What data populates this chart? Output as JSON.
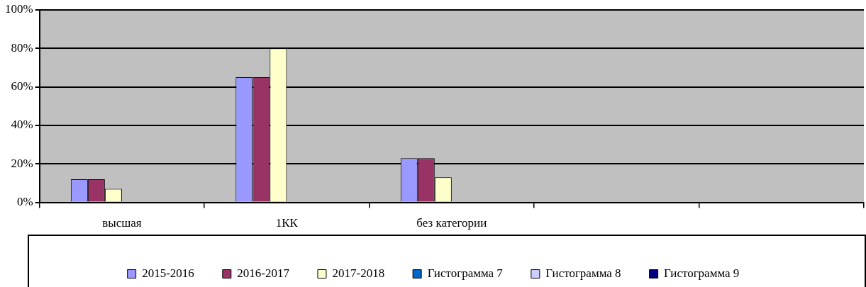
{
  "chart_data": {
    "type": "bar",
    "categories": [
      "высшая",
      "1КК",
      "без категории",
      null,
      null
    ],
    "series": [
      {
        "name": "2015-2016",
        "color": "#9999ff",
        "values": [
          12,
          65,
          23,
          null,
          null
        ]
      },
      {
        "name": "2016-2017",
        "color": "#993366",
        "values": [
          12,
          65,
          23,
          null,
          null
        ]
      },
      {
        "name": "2017-2018",
        "color": "#ffffcc",
        "values": [
          7,
          80,
          13,
          null,
          null
        ]
      },
      {
        "name": "Гистограмма 7",
        "color": "#0066cc",
        "values": [
          null,
          null,
          null,
          null,
          null
        ]
      },
      {
        "name": "Гистограмма 8",
        "color": "#ccccff",
        "values": [
          null,
          null,
          null,
          null,
          null
        ]
      },
      {
        "name": "Гистограмма 9",
        "color": "#000080",
        "values": [
          null,
          null,
          null,
          null,
          null
        ]
      }
    ],
    "ylim": [
      0,
      100
    ],
    "yticks": [
      {
        "value": 0,
        "label": "0%"
      },
      {
        "value": 20,
        "label": "20%"
      },
      {
        "value": 40,
        "label": "40%"
      },
      {
        "value": 60,
        "label": "60%"
      },
      {
        "value": 80,
        "label": "80%"
      },
      {
        "value": 100,
        "label": "100%"
      }
    ],
    "grid": "y",
    "legend": "bottom"
  }
}
